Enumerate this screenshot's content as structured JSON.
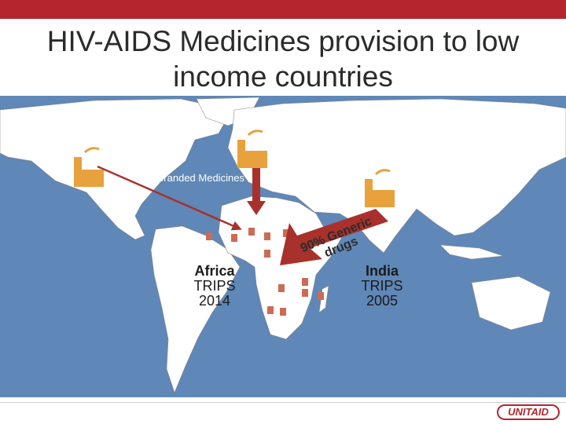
{
  "slide": {
    "title": "HIV-AIDS Medicines provision to low income countries"
  },
  "diagram": {
    "branded_label": "10% Branded Medicines",
    "generic_line1": "90% Generic",
    "generic_line2": "drugs",
    "africa_line1": "Africa",
    "africa_line2": "TRIPS",
    "africa_line3": "2014",
    "india_line1": "India",
    "india_line2": "TRIPS",
    "india_line3": "2005",
    "icons": [
      "factory-icon",
      "pill-bottle-icon",
      "arrow-icon"
    ],
    "colors": {
      "ocean": "#5f87b7",
      "land": "#ffffff",
      "factory": "#e7a13d",
      "arrow": "#a8312c",
      "accent_bar": "#b5252d"
    }
  },
  "footer": {
    "logo_text": "UNITAID"
  }
}
